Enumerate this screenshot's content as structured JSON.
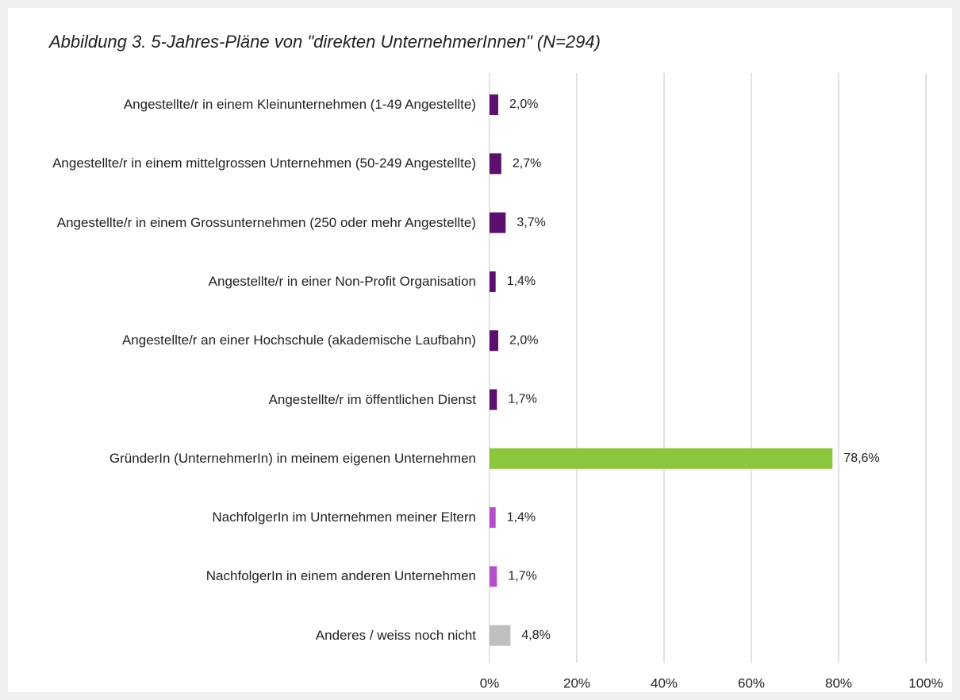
{
  "chart_data": {
    "type": "bar",
    "orientation": "horizontal",
    "title": "Abbildung 3. 5-Jahres-Pläne von \"direkten UnternehmerInnen\" (N=294)",
    "categories": [
      "Angestellte/r in einem Kleinunternehmen (1-49 Angestellte)",
      "Angestellte/r in einem mittelgrossen Unternehmen (50-249 Angestellte)",
      "Angestellte/r in einem Grossunternehmen (250 oder mehr Angestellte)",
      "Angestellte/r in einer Non-Profit Organisation",
      "Angestellte/r an einer Hochschule (akademische Laufbahn)",
      "Angestellte/r im öffentlichen Dienst",
      "GründerIn (UnternehmerIn) in meinem eigenen Unternehmen",
      "NachfolgerIn im Unternehmen meiner Eltern",
      "NachfolgerIn in einem anderen Unternehmen",
      "Anderes / weiss noch nicht"
    ],
    "values": [
      2.0,
      2.7,
      3.7,
      1.4,
      2.0,
      1.7,
      78.6,
      1.4,
      1.7,
      4.8
    ],
    "value_labels": [
      "2,0%",
      "2,7%",
      "3,7%",
      "1,4%",
      "2,0%",
      "1,7%",
      "78,6%",
      "1,4%",
      "1,7%",
      "4,8%"
    ],
    "colors": [
      "#5b0f6e",
      "#5b0f6e",
      "#5b0f6e",
      "#5b0f6e",
      "#5b0f6e",
      "#5b0f6e",
      "#8cc63f",
      "#b54fc9",
      "#b54fc9",
      "#bfbfbf"
    ],
    "xlim": [
      0,
      100
    ],
    "xticks": [
      {
        "value": 0,
        "label": "0%"
      },
      {
        "value": 20,
        "label": "20%"
      },
      {
        "value": 40,
        "label": "40%"
      },
      {
        "value": 60,
        "label": "60%"
      },
      {
        "value": 80,
        "label": "80%"
      },
      {
        "value": 100,
        "label": "100%"
      }
    ],
    "grid": true
  }
}
